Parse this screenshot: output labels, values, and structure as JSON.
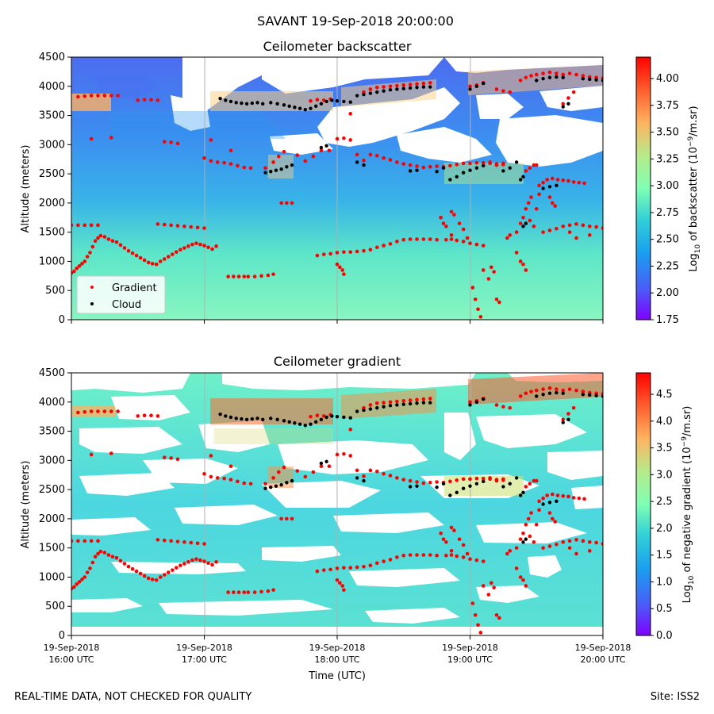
{
  "figure": {
    "suptitle": "SAVANT 19-Sep-2018 20:00:00",
    "footer_left": "REAL-TIME DATA, NOT CHECKED FOR QUALITY",
    "footer_right": "Site: ISS2"
  },
  "chart_data": [
    {
      "type": "heatmap",
      "title": "Ceilometer backscatter",
      "xlabel": "",
      "ylabel": "Altitude (meters)",
      "ylim": [
        0,
        4500
      ],
      "yticks": [
        "0",
        "500",
        "1000",
        "1500",
        "2000",
        "2500",
        "3000",
        "3500",
        "4000",
        "4500"
      ],
      "xticks": [],
      "grid": "vertical",
      "colorbar": {
        "label_prefix": "Log",
        "label_sub": "10",
        "label_mid": " of backscatter (10",
        "label_sup": "−9",
        "label_suffix": "/m.sr)",
        "range": [
          1.75,
          4.2
        ],
        "ticks": [
          "1.75",
          "2.00",
          "2.25",
          "2.50",
          "2.75",
          "3.00",
          "3.25",
          "3.50",
          "3.75",
          "4.00"
        ],
        "colormap": "rainbow"
      },
      "legend": {
        "placement": "lower-left",
        "entries": [
          {
            "label": "Gradient",
            "color": "#ff0000"
          },
          {
            "label": "Cloud",
            "color": "#000000"
          }
        ]
      }
    },
    {
      "type": "heatmap",
      "title": "Ceilometer gradient",
      "xlabel": "Time (UTC)",
      "ylabel": "Altitude (meters)",
      "ylim": [
        0,
        4500
      ],
      "yticks": [
        "0",
        "500",
        "1000",
        "1500",
        "2000",
        "2500",
        "3000",
        "3500",
        "4000",
        "4500"
      ],
      "xticks": [
        {
          "date": "19-Sep-2018",
          "time": "16:00 UTC"
        },
        {
          "date": "19-Sep-2018",
          "time": "17:00 UTC"
        },
        {
          "date": "19-Sep-2018",
          "time": "18:00 UTC"
        },
        {
          "date": "19-Sep-2018",
          "time": "19:00 UTC"
        },
        {
          "date": "19-Sep-2018",
          "time": "20:00 UTC"
        }
      ],
      "grid": "vertical",
      "colorbar": {
        "label_prefix": "Log",
        "label_sub": "10",
        "label_mid": " of negative gradient (10",
        "label_sup": "−9",
        "label_suffix": "/m.sr)",
        "range": [
          0.0,
          4.9
        ],
        "ticks": [
          "0.0",
          "0.5",
          "1.0",
          "1.5",
          "2.0",
          "2.5",
          "3.0",
          "3.5",
          "4.0",
          "4.5"
        ],
        "colormap": "rainbow"
      }
    }
  ],
  "series_points": {
    "gradient": [
      [
        0.0,
        800
      ],
      [
        0.02,
        830
      ],
      [
        0.04,
        880
      ],
      [
        0.06,
        920
      ],
      [
        0.08,
        960
      ],
      [
        0.1,
        1000
      ],
      [
        0.12,
        1080
      ],
      [
        0.14,
        1150
      ],
      [
        0.16,
        1250
      ],
      [
        0.18,
        1350
      ],
      [
        0.2,
        1400
      ],
      [
        0.22,
        1440
      ],
      [
        0.25,
        1420
      ],
      [
        0.28,
        1380
      ],
      [
        0.31,
        1350
      ],
      [
        0.34,
        1330
      ],
      [
        0.37,
        1280
      ],
      [
        0.4,
        1230
      ],
      [
        0.43,
        1180
      ],
      [
        0.46,
        1140
      ],
      [
        0.49,
        1100
      ],
      [
        0.52,
        1060
      ],
      [
        0.55,
        1020
      ],
      [
        0.58,
        980
      ],
      [
        0.61,
        960
      ],
      [
        0.64,
        950
      ],
      [
        0.67,
        1000
      ],
      [
        0.7,
        1040
      ],
      [
        0.73,
        1080
      ],
      [
        0.76,
        1120
      ],
      [
        0.79,
        1160
      ],
      [
        0.82,
        1200
      ],
      [
        0.85,
        1230
      ],
      [
        0.88,
        1260
      ],
      [
        0.91,
        1290
      ],
      [
        0.94,
        1310
      ],
      [
        0.97,
        1290
      ],
      [
        1.0,
        1270
      ],
      [
        1.03,
        1240
      ],
      [
        1.06,
        1210
      ],
      [
        1.09,
        1260
      ],
      [
        0.0,
        1620
      ],
      [
        0.05,
        1620
      ],
      [
        0.1,
        1620
      ],
      [
        0.15,
        1620
      ],
      [
        0.2,
        1620
      ],
      [
        0.65,
        1640
      ],
      [
        0.7,
        1630
      ],
      [
        0.75,
        1620
      ],
      [
        0.8,
        1610
      ],
      [
        0.85,
        1600
      ],
      [
        0.9,
        1590
      ],
      [
        0.95,
        1580
      ],
      [
        1.0,
        1570
      ],
      [
        0.05,
        3820
      ],
      [
        0.1,
        3830
      ],
      [
        0.15,
        3840
      ],
      [
        0.2,
        3840
      ],
      [
        0.25,
        3840
      ],
      [
        0.3,
        3840
      ],
      [
        0.35,
        3840
      ],
      [
        0.15,
        3100
      ],
      [
        0.3,
        3120
      ],
      [
        0.5,
        3760
      ],
      [
        0.55,
        3770
      ],
      [
        0.6,
        3770
      ],
      [
        0.65,
        3760
      ],
      [
        0.7,
        3050
      ],
      [
        0.75,
        3040
      ],
      [
        0.8,
        3020
      ],
      [
        1.0,
        2770
      ],
      [
        1.05,
        2720
      ],
      [
        1.1,
        2700
      ],
      [
        1.15,
        2690
      ],
      [
        1.2,
        2670
      ],
      [
        1.25,
        2640
      ],
      [
        1.3,
        2610
      ],
      [
        1.35,
        2600
      ],
      [
        1.05,
        3080
      ],
      [
        1.2,
        2900
      ],
      [
        1.18,
        740
      ],
      [
        1.22,
        740
      ],
      [
        1.26,
        740
      ],
      [
        1.3,
        740
      ],
      [
        1.33,
        740
      ],
      [
        1.38,
        740
      ],
      [
        1.43,
        750
      ],
      [
        1.48,
        760
      ],
      [
        1.52,
        780
      ],
      [
        1.46,
        2600
      ],
      [
        1.52,
        2700
      ],
      [
        1.56,
        2800
      ],
      [
        1.6,
        2880
      ],
      [
        1.58,
        2000
      ],
      [
        1.62,
        2000
      ],
      [
        1.66,
        2000
      ],
      [
        1.7,
        2820
      ],
      [
        1.76,
        2720
      ],
      [
        1.82,
        2800
      ],
      [
        1.88,
        2900
      ],
      [
        1.94,
        2900
      ],
      [
        1.8,
        3750
      ],
      [
        1.85,
        3770
      ],
      [
        1.9,
        3760
      ],
      [
        1.95,
        3780
      ],
      [
        1.85,
        1100
      ],
      [
        1.9,
        1120
      ],
      [
        1.95,
        1130
      ],
      [
        2.0,
        1150
      ],
      [
        2.0,
        3100
      ],
      [
        2.05,
        3110
      ],
      [
        2.1,
        3080
      ],
      [
        2.0,
        950
      ],
      [
        2.02,
        900
      ],
      [
        2.04,
        850
      ],
      [
        2.05,
        780
      ],
      [
        2.05,
        1160
      ],
      [
        2.1,
        1160
      ],
      [
        2.15,
        1170
      ],
      [
        2.2,
        1180
      ],
      [
        2.25,
        1200
      ],
      [
        2.3,
        1240
      ],
      [
        2.35,
        1270
      ],
      [
        2.4,
        1300
      ],
      [
        2.45,
        1340
      ],
      [
        2.5,
        1370
      ],
      [
        2.55,
        1380
      ],
      [
        2.6,
        1380
      ],
      [
        2.65,
        1380
      ],
      [
        2.7,
        1380
      ],
      [
        2.75,
        1370
      ],
      [
        2.1,
        3530
      ],
      [
        2.15,
        2830
      ],
      [
        2.2,
        2730
      ],
      [
        2.25,
        2830
      ],
      [
        2.3,
        2810
      ],
      [
        2.35,
        2770
      ],
      [
        2.4,
        2740
      ],
      [
        2.45,
        2700
      ],
      [
        2.5,
        2670
      ],
      [
        2.55,
        2650
      ],
      [
        2.6,
        2630
      ],
      [
        2.65,
        2610
      ],
      [
        2.7,
        2620
      ],
      [
        2.75,
        2630
      ],
      [
        2.8,
        2620
      ],
      [
        2.85,
        2640
      ],
      [
        2.9,
        2660
      ],
      [
        2.95,
        2680
      ],
      [
        3.0,
        2680
      ],
      [
        3.05,
        2690
      ],
      [
        3.1,
        2690
      ],
      [
        3.15,
        2680
      ],
      [
        3.2,
        2670
      ],
      [
        3.25,
        2660
      ],
      [
        2.2,
        3900
      ],
      [
        2.25,
        3950
      ],
      [
        2.3,
        3980
      ],
      [
        2.35,
        3990
      ],
      [
        2.4,
        4000
      ],
      [
        2.45,
        4010
      ],
      [
        2.5,
        4020
      ],
      [
        2.55,
        4030
      ],
      [
        2.6,
        4040
      ],
      [
        2.65,
        4050
      ],
      [
        2.7,
        4060
      ],
      [
        2.78,
        1750
      ],
      [
        2.8,
        1650
      ],
      [
        2.82,
        1600
      ],
      [
        2.86,
        1450
      ],
      [
        2.82,
        1370
      ],
      [
        2.86,
        1380
      ],
      [
        2.9,
        1360
      ],
      [
        2.95,
        1340
      ],
      [
        3.0,
        1310
      ],
      [
        3.05,
        1290
      ],
      [
        3.1,
        1270
      ],
      [
        2.86,
        1850
      ],
      [
        2.88,
        1800
      ],
      [
        2.92,
        1650
      ],
      [
        2.95,
        1550
      ],
      [
        2.98,
        1400
      ],
      [
        3.02,
        550
      ],
      [
        3.04,
        350
      ],
      [
        3.06,
        180
      ],
      [
        3.08,
        50
      ],
      [
        3.1,
        850
      ],
      [
        3.14,
        700
      ],
      [
        3.16,
        900
      ],
      [
        3.18,
        820
      ],
      [
        3.2,
        350
      ],
      [
        3.22,
        300
      ],
      [
        3.0,
        4000
      ],
      [
        3.05,
        4020
      ],
      [
        3.1,
        4060
      ],
      [
        3.15,
        2700
      ],
      [
        3.2,
        2650
      ],
      [
        3.25,
        2680
      ],
      [
        3.28,
        1400
      ],
      [
        3.3,
        1450
      ],
      [
        3.35,
        1500
      ],
      [
        3.38,
        1650
      ],
      [
        3.4,
        1750
      ],
      [
        3.42,
        1900
      ],
      [
        3.44,
        2000
      ],
      [
        3.46,
        2100
      ],
      [
        3.35,
        1150
      ],
      [
        3.38,
        1000
      ],
      [
        3.4,
        950
      ],
      [
        3.42,
        850
      ],
      [
        3.45,
        1700
      ],
      [
        3.48,
        1600
      ],
      [
        3.5,
        1900
      ],
      [
        3.52,
        2150
      ],
      [
        3.42,
        2550
      ],
      [
        3.45,
        2600
      ],
      [
        3.48,
        2650
      ],
      [
        3.5,
        2650
      ],
      [
        3.52,
        2300
      ],
      [
        3.55,
        2350
      ],
      [
        3.58,
        2400
      ],
      [
        3.62,
        2420
      ],
      [
        3.66,
        2400
      ],
      [
        3.7,
        2390
      ],
      [
        3.74,
        2380
      ],
      [
        3.78,
        2360
      ],
      [
        3.82,
        2350
      ],
      [
        3.86,
        2340
      ],
      [
        3.55,
        1500
      ],
      [
        3.6,
        1530
      ],
      [
        3.65,
        1560
      ],
      [
        3.7,
        1600
      ],
      [
        3.75,
        1620
      ],
      [
        3.8,
        1640
      ],
      [
        3.85,
        1620
      ],
      [
        3.9,
        1600
      ],
      [
        3.95,
        1590
      ],
      [
        4.0,
        1570
      ],
      [
        3.6,
        2100
      ],
      [
        3.62,
        2000
      ],
      [
        3.64,
        1950
      ],
      [
        3.75,
        1500
      ],
      [
        3.8,
        1400
      ],
      [
        3.9,
        1450
      ],
      [
        3.38,
        4100
      ],
      [
        3.42,
        4150
      ],
      [
        3.46,
        4180
      ],
      [
        3.5,
        4200
      ],
      [
        3.55,
        4220
      ],
      [
        3.6,
        4240
      ],
      [
        3.65,
        4220
      ],
      [
        3.7,
        4200
      ],
      [
        3.75,
        4220
      ],
      [
        3.8,
        4200
      ],
      [
        3.85,
        4180
      ],
      [
        3.9,
        4160
      ],
      [
        3.95,
        4150
      ],
      [
        4.0,
        4140
      ],
      [
        3.7,
        3700
      ],
      [
        3.74,
        3800
      ],
      [
        3.78,
        3900
      ],
      [
        3.2,
        3950
      ],
      [
        3.25,
        3920
      ],
      [
        3.3,
        3900
      ]
    ],
    "cloud": [
      [
        1.12,
        3790
      ],
      [
        1.16,
        3760
      ],
      [
        1.2,
        3740
      ],
      [
        1.24,
        3720
      ],
      [
        1.28,
        3710
      ],
      [
        1.32,
        3700
      ],
      [
        1.36,
        3710
      ],
      [
        1.4,
        3720
      ],
      [
        1.44,
        3700
      ],
      [
        1.5,
        3720
      ],
      [
        1.55,
        3700
      ],
      [
        1.6,
        3680
      ],
      [
        1.64,
        3660
      ],
      [
        1.68,
        3640
      ],
      [
        1.72,
        3620
      ],
      [
        1.76,
        3600
      ],
      [
        1.8,
        3620
      ],
      [
        1.84,
        3660
      ],
      [
        1.88,
        3700
      ],
      [
        1.92,
        3740
      ],
      [
        1.96,
        3760
      ],
      [
        1.46,
        2520
      ],
      [
        1.5,
        2540
      ],
      [
        1.54,
        2560
      ],
      [
        1.58,
        2580
      ],
      [
        1.62,
        2620
      ],
      [
        1.66,
        2650
      ],
      [
        1.88,
        2950
      ],
      [
        1.92,
        2980
      ],
      [
        2.0,
        3750
      ],
      [
        2.05,
        3740
      ],
      [
        2.1,
        3730
      ],
      [
        2.15,
        3840
      ],
      [
        2.2,
        3860
      ],
      [
        2.25,
        3880
      ],
      [
        2.3,
        3900
      ],
      [
        2.35,
        3920
      ],
      [
        2.4,
        3940
      ],
      [
        2.45,
        3950
      ],
      [
        2.5,
        3960
      ],
      [
        2.55,
        3970
      ],
      [
        2.6,
        3980
      ],
      [
        2.65,
        3990
      ],
      [
        2.7,
        3990
      ],
      [
        2.15,
        2700
      ],
      [
        2.2,
        2650
      ],
      [
        2.55,
        2550
      ],
      [
        2.6,
        2560
      ],
      [
        2.75,
        2540
      ],
      [
        2.8,
        2600
      ],
      [
        2.85,
        2400
      ],
      [
        2.9,
        2450
      ],
      [
        2.95,
        2520
      ],
      [
        3.0,
        2560
      ],
      [
        3.05,
        2600
      ],
      [
        3.1,
        2640
      ],
      [
        3.0,
        3950
      ],
      [
        3.05,
        4000
      ],
      [
        3.1,
        4050
      ],
      [
        3.25,
        2550
      ],
      [
        3.3,
        2600
      ],
      [
        3.35,
        2700
      ],
      [
        3.38,
        2400
      ],
      [
        3.4,
        2450
      ],
      [
        3.4,
        1600
      ],
      [
        3.42,
        1650
      ],
      [
        3.5,
        4100
      ],
      [
        3.55,
        4130
      ],
      [
        3.6,
        4150
      ],
      [
        3.65,
        4160
      ],
      [
        3.7,
        4150
      ],
      [
        3.55,
        2250
      ],
      [
        3.6,
        2280
      ],
      [
        3.65,
        2300
      ],
      [
        3.7,
        3650
      ],
      [
        3.74,
        3700
      ],
      [
        3.85,
        4130
      ],
      [
        3.9,
        4120
      ],
      [
        3.95,
        4110
      ],
      [
        4.0,
        4100
      ]
    ]
  }
}
